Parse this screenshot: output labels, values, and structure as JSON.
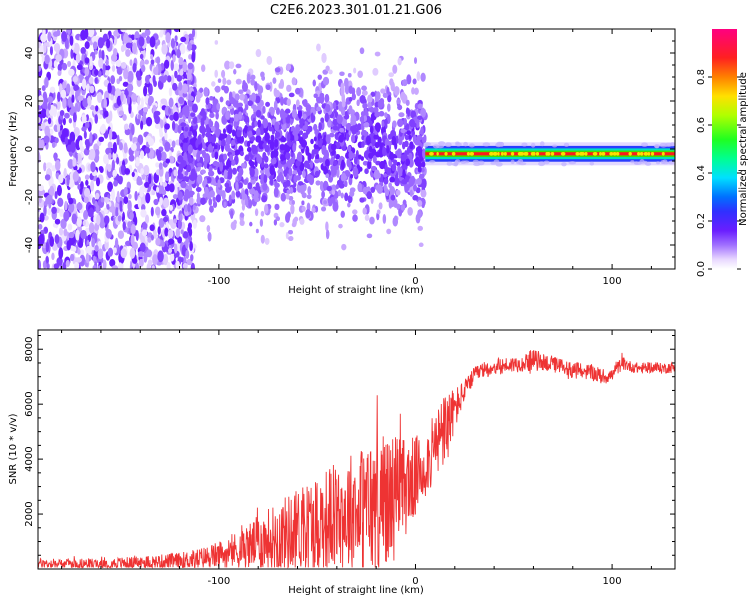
{
  "title": "C2E6.2023.301.01.21.G06",
  "chart_data": [
    {
      "type": "heatmap",
      "xlabel": "Height of straight line (km)",
      "ylabel": "Frequency (Hz)",
      "xlim": [
        -192,
        132
      ],
      "ylim": [
        -50,
        50
      ],
      "x_tick_labels": [
        "-100",
        "0",
        "100"
      ],
      "x_ticks": [
        -100,
        0,
        100
      ],
      "y_tick_labels": [
        "-40",
        "-20",
        "0",
        "20",
        "40"
      ],
      "y_ticks": [
        -40,
        -20,
        0,
        20,
        40
      ],
      "colorbar": {
        "label": "Normalized spectral amplitude",
        "range": [
          0,
          1
        ],
        "tick_labels": [
          "0.0",
          "0.2",
          "0.4",
          "0.6",
          "0.8"
        ],
        "ticks": [
          0.0,
          0.2,
          0.4,
          0.6,
          0.8
        ],
        "colormap": "rainbow (white-violet-blue-cyan-green-yellow-red-magenta)"
      },
      "features": [
        {
          "x_range": [
            -192,
            -120
          ],
          "freq_spread": [
            -50,
            50
          ],
          "amplitude": 0.05
        },
        {
          "x_range": [
            -120,
            5
          ],
          "freq_spread": [
            -42,
            46
          ],
          "amplitude": 0.1
        },
        {
          "x_range": [
            5,
            132
          ],
          "freq_center": -2,
          "freq_halfwidth": 3,
          "amplitude": 0.9
        }
      ],
      "grid": false
    },
    {
      "type": "line",
      "xlabel": "Height of straight line (km)",
      "ylabel": "SNR (10 * v/v)",
      "xlim": [
        -192,
        132
      ],
      "ylim": [
        0,
        8700
      ],
      "x_tick_labels": [
        "-100",
        "0",
        "100"
      ],
      "x_ticks": [
        -100,
        0,
        100
      ],
      "y_tick_labels": [
        "2000",
        "4000",
        "6000",
        "8000"
      ],
      "y_ticks": [
        2000,
        4000,
        6000,
        8000
      ],
      "color": "#ee3333",
      "series": [
        {
          "x": [
            -192,
            -180,
            -160,
            -140,
            -120,
            -110,
            -100,
            -90,
            -80,
            -70,
            -60,
            -50,
            -40,
            -30,
            -20,
            -15,
            -10,
            -5,
            0,
            5,
            10,
            15,
            20,
            25,
            30,
            35,
            40,
            45,
            50,
            55,
            60,
            65,
            70,
            75,
            80,
            85,
            90,
            95,
            100,
            105,
            110,
            115,
            120,
            125,
            132
          ],
          "y": [
            200,
            180,
            200,
            230,
            300,
            380,
            500,
            700,
            950,
            1200,
            1450,
            1700,
            1950,
            2150,
            2300,
            2450,
            2700,
            3000,
            3350,
            3800,
            4400,
            5100,
            5800,
            6500,
            7050,
            7250,
            7350,
            7400,
            7450,
            7500,
            7600,
            7550,
            7450,
            7350,
            7250,
            7200,
            7150,
            7000,
            7050,
            7500,
            7350,
            7300,
            7350,
            7300,
            7350
          ],
          "noise_amplitude": [
            200,
            180,
            200,
            230,
            300,
            380,
            500,
            700,
            1000,
            1300,
            1500,
            1800,
            2000,
            2300,
            2600,
            2600,
            2300,
            1800,
            1500,
            1200,
            1300,
            1400,
            800,
            400,
            300,
            300,
            300,
            300,
            300,
            320,
            400,
            350,
            300,
            300,
            300,
            300,
            300,
            300,
            250,
            250,
            200,
            200,
            200,
            200,
            200
          ]
        }
      ],
      "grid": false
    }
  ]
}
